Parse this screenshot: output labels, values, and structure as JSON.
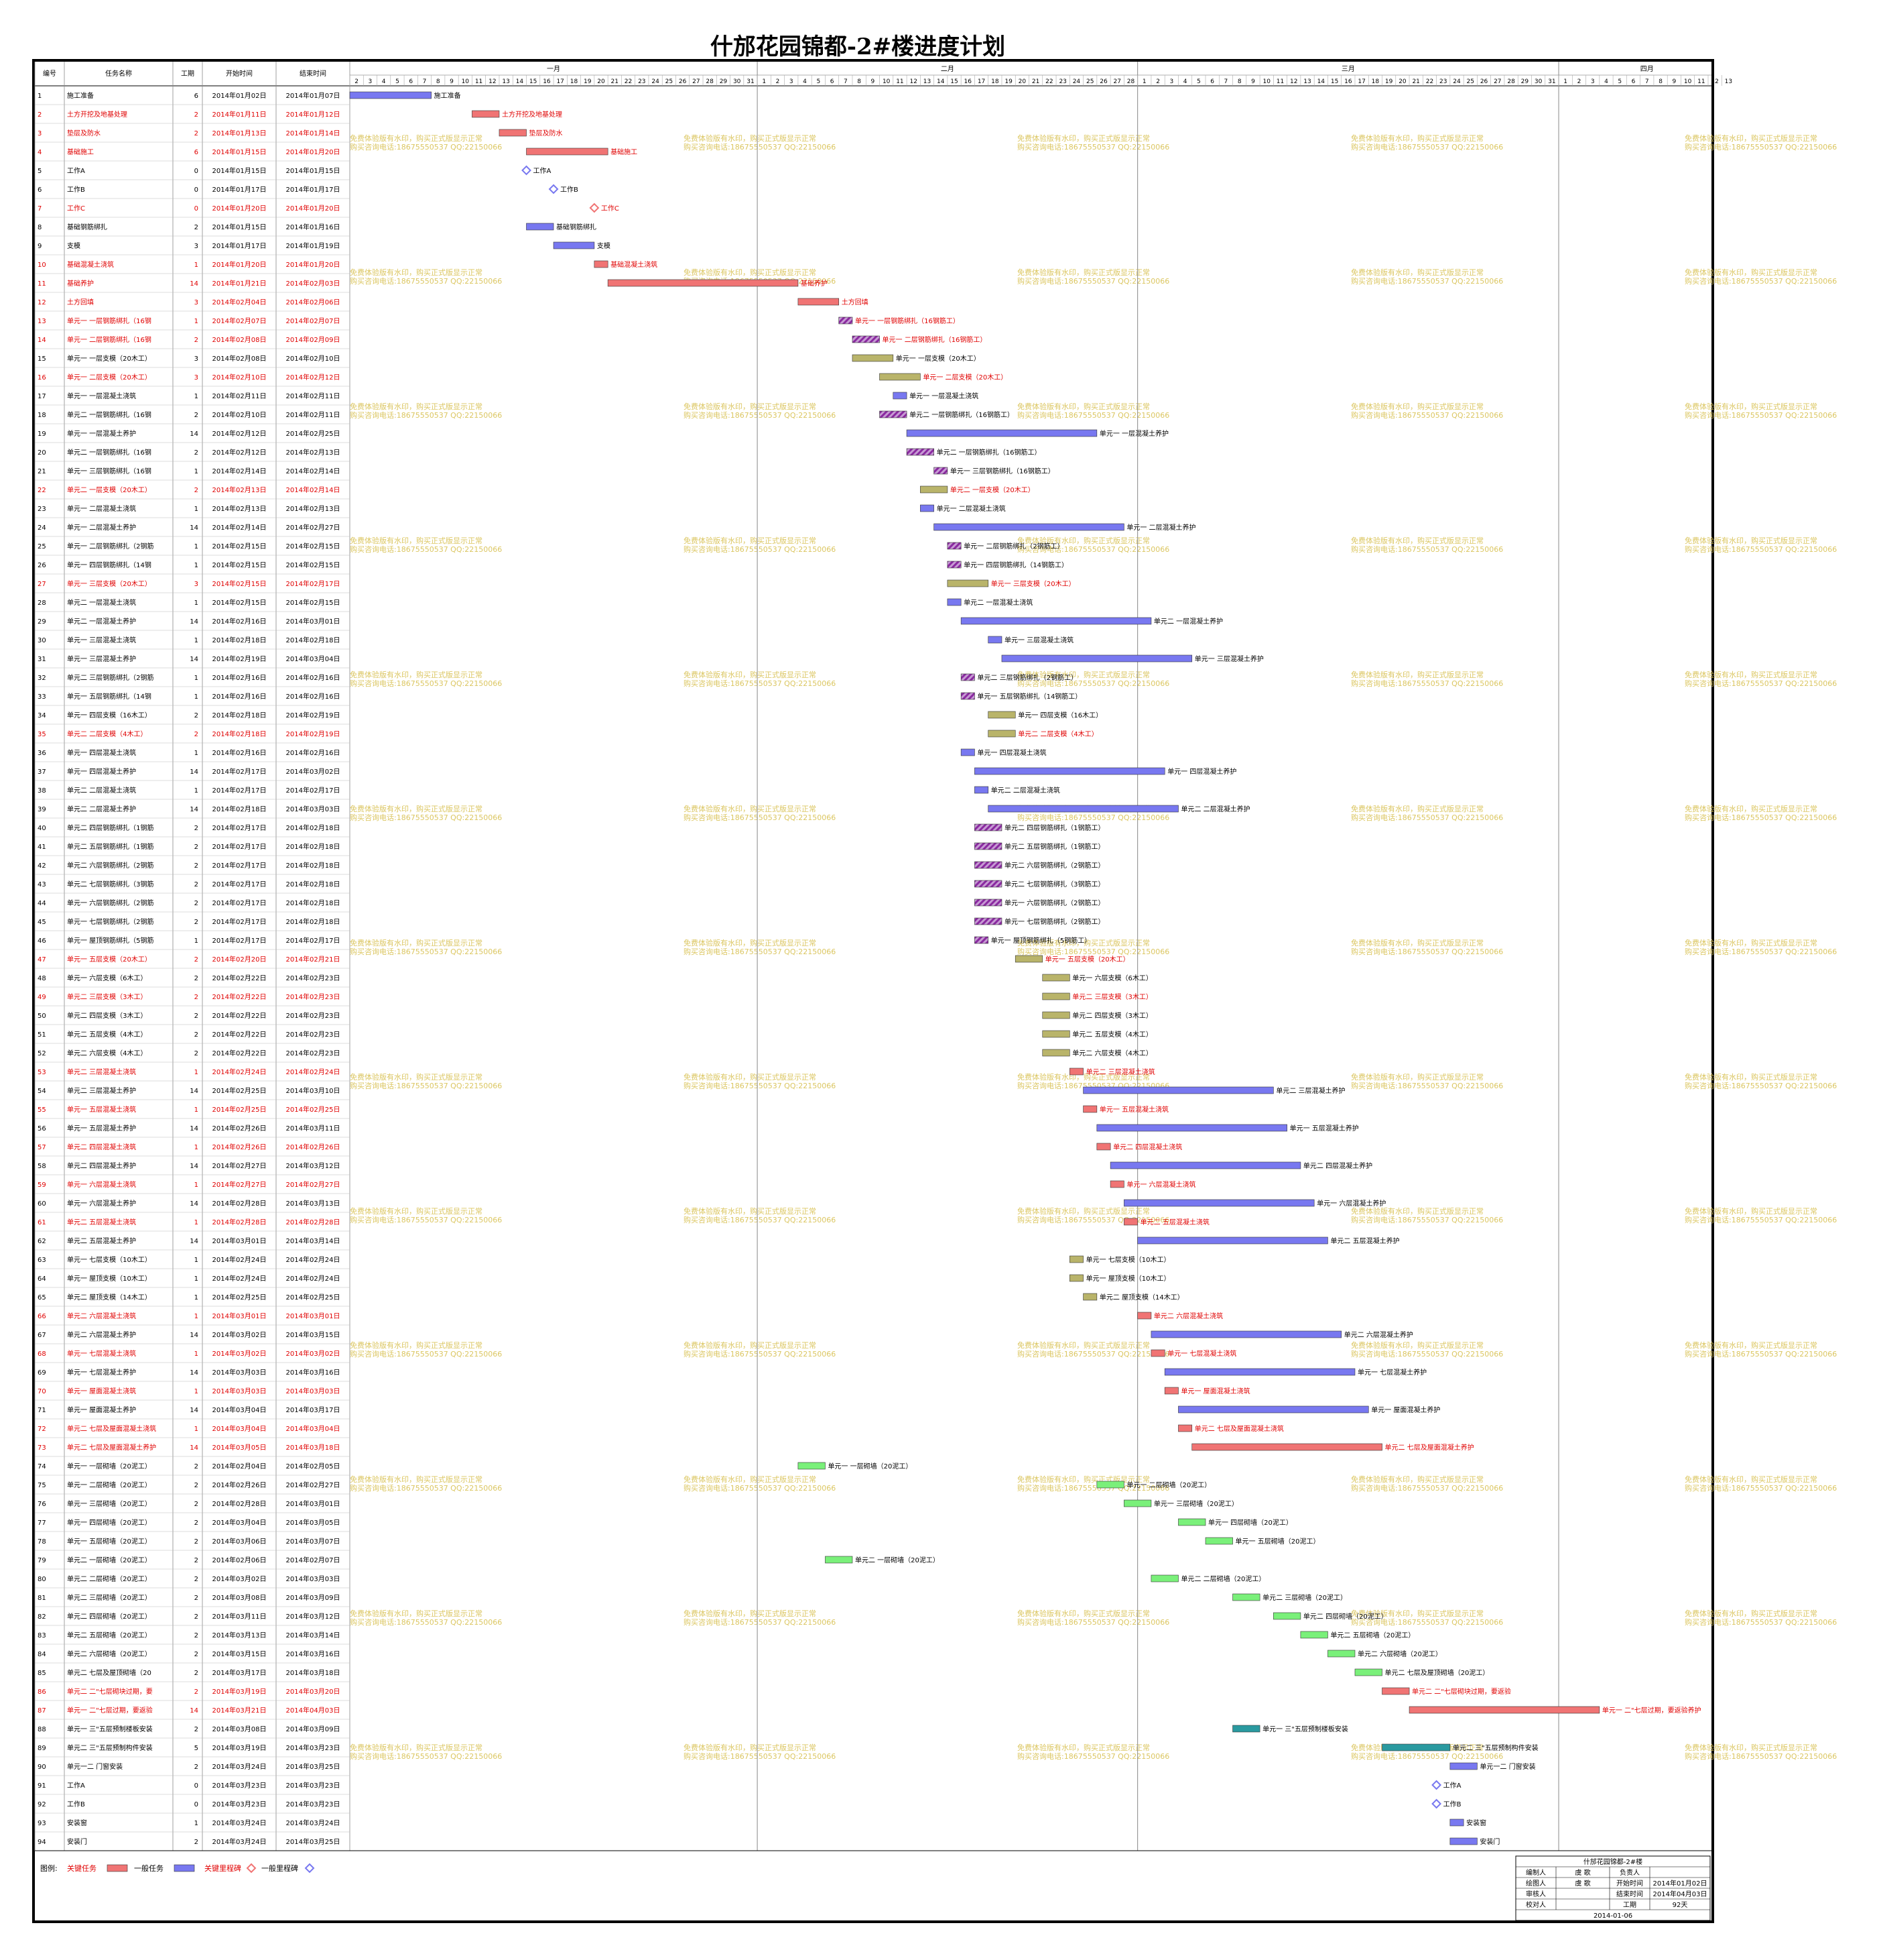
{
  "title": "什邡花园锦都-2#楼进度计划",
  "columns": [
    "编号",
    "任务名称",
    "工期",
    "开始时间",
    "结束时间"
  ],
  "months": [
    {
      "label": "一月",
      "days": [
        2,
        31
      ]
    },
    {
      "label": "二月",
      "days": [
        1,
        28
      ]
    },
    {
      "label": "三月",
      "days": [
        1,
        31
      ]
    },
    {
      "label": "四月",
      "days": [
        1,
        13
      ]
    }
  ],
  "watermark": [
    "免费体验版有水印，购买正式版显示正常",
    "购买咨询电话:18675550537 QQ:22150066"
  ],
  "legend": {
    "label": "图例:",
    "items": [
      "关键任务",
      "一般任务",
      "关键里程碑",
      "一般里程碑"
    ]
  },
  "colors": {
    "critical": "#f07474",
    "normal": "#7878f0",
    "rebar": "#8a2aa0",
    "formwork": "#b9b46a",
    "masonry": "#7af07a",
    "precast": "#2a9aa0",
    "text_red": "#e00000"
  },
  "info": {
    "project": "什邡花园锦都-2#楼",
    "rows": [
      [
        "编制人",
        "虞 歌",
        "负责人",
        ""
      ],
      [
        "绘图人",
        "虞 歌",
        "开始时间",
        "2014年01月02日"
      ],
      [
        "审核人",
        "",
        "结束时间",
        "2014年04月03日"
      ],
      [
        "校对人",
        "",
        "工期",
        "92天"
      ]
    ],
    "date": "2014-01-06"
  },
  "chart_data": {
    "type": "gantt",
    "title": "什邡花园锦都-2#楼进度计划",
    "x_range": [
      "2014-01-02",
      "2014-04-13"
    ],
    "tasks": [
      {
        "id": 1,
        "name": "施工准备",
        "dur": 6,
        "start": "2014年01月02日",
        "end": "2014年01月07日",
        "crit": false,
        "kind": "normal"
      },
      {
        "id": 2,
        "name": "土方开挖及地基处理",
        "dur": 2,
        "start": "2014年01月11日",
        "end": "2014年01月12日",
        "crit": true,
        "kind": "normal"
      },
      {
        "id": 3,
        "name": "垫层及防水",
        "dur": 2,
        "start": "2014年01月13日",
        "end": "2014年01月14日",
        "crit": true,
        "kind": "normal"
      },
      {
        "id": 4,
        "name": "基础施工",
        "dur": 6,
        "start": "2014年01月15日",
        "end": "2014年01月20日",
        "crit": true,
        "kind": "normal"
      },
      {
        "id": 5,
        "name": "工作A",
        "dur": 0,
        "start": "2014年01月15日",
        "end": "2014年01月15日",
        "crit": false,
        "kind": "milestone"
      },
      {
        "id": 6,
        "name": "工作B",
        "dur": 0,
        "start": "2014年01月17日",
        "end": "2014年01月17日",
        "crit": false,
        "kind": "milestone"
      },
      {
        "id": 7,
        "name": "工作C",
        "dur": 0,
        "start": "2014年01月20日",
        "end": "2014年01月20日",
        "crit": true,
        "kind": "milestone"
      },
      {
        "id": 8,
        "name": "基础钢筋绑扎",
        "dur": 2,
        "start": "2014年01月15日",
        "end": "2014年01月16日",
        "crit": false,
        "kind": "normal"
      },
      {
        "id": 9,
        "name": "支模",
        "dur": 3,
        "start": "2014年01月17日",
        "end": "2014年01月19日",
        "crit": false,
        "kind": "normal"
      },
      {
        "id": 10,
        "name": "基础混凝土浇筑",
        "dur": 1,
        "start": "2014年01月20日",
        "end": "2014年01月20日",
        "crit": true,
        "kind": "normal"
      },
      {
        "id": 11,
        "name": "基础养护",
        "dur": 14,
        "start": "2014年01月21日",
        "end": "2014年02月03日",
        "crit": true,
        "kind": "normal"
      },
      {
        "id": 12,
        "name": "土方回填",
        "dur": 3,
        "start": "2014年02月04日",
        "end": "2014年02月06日",
        "crit": true,
        "kind": "normal"
      },
      {
        "id": 13,
        "name": "单元一 一层钢筋绑扎（16钢筋工）",
        "dur": 1,
        "start": "2014年02月07日",
        "end": "2014年02月07日",
        "crit": true,
        "kind": "rebar"
      },
      {
        "id": 14,
        "name": "单元一 二层钢筋绑扎（16钢筋工）",
        "dur": 2,
        "start": "2014年02月08日",
        "end": "2014年02月09日",
        "crit": true,
        "kind": "rebar"
      },
      {
        "id": 15,
        "name": "单元一 一层支模（20木工）",
        "dur": 3,
        "start": "2014年02月08日",
        "end": "2014年02月10日",
        "crit": false,
        "kind": "formwork"
      },
      {
        "id": 16,
        "name": "单元一 二层支模（20木工）",
        "dur": 3,
        "start": "2014年02月10日",
        "end": "2014年02月12日",
        "crit": true,
        "kind": "formwork"
      },
      {
        "id": 17,
        "name": "单元一 一层混凝土浇筑",
        "dur": 1,
        "start": "2014年02月11日",
        "end": "2014年02月11日",
        "crit": false,
        "kind": "normal"
      },
      {
        "id": 18,
        "name": "单元二 一层钢筋绑扎（16钢筋工）",
        "dur": 2,
        "start": "2014年02月10日",
        "end": "2014年02月11日",
        "crit": false,
        "kind": "rebar"
      },
      {
        "id": 19,
        "name": "单元一 一层混凝土养护",
        "dur": 14,
        "start": "2014年02月12日",
        "end": "2014年02月25日",
        "crit": false,
        "kind": "normal"
      },
      {
        "id": 20,
        "name": "单元二 一层钢筋绑扎（16钢筋工）",
        "dur": 2,
        "start": "2014年02月12日",
        "end": "2014年02月13日",
        "crit": false,
        "kind": "rebar"
      },
      {
        "id": 21,
        "name": "单元一 三层钢筋绑扎（16钢筋工）",
        "dur": 1,
        "start": "2014年02月14日",
        "end": "2014年02月14日",
        "crit": false,
        "kind": "rebar"
      },
      {
        "id": 22,
        "name": "单元二 一层支模（20木工）",
        "dur": 2,
        "start": "2014年02月13日",
        "end": "2014年02月14日",
        "crit": true,
        "kind": "formwork"
      },
      {
        "id": 23,
        "name": "单元一 二层混凝土浇筑",
        "dur": 1,
        "start": "2014年02月13日",
        "end": "2014年02月13日",
        "crit": false,
        "kind": "normal"
      },
      {
        "id": 24,
        "name": "单元一 二层混凝土养护",
        "dur": 14,
        "start": "2014年02月14日",
        "end": "2014年02月27日",
        "crit": false,
        "kind": "normal"
      },
      {
        "id": 25,
        "name": "单元一 二层钢筋绑扎（2钢筋工）",
        "dur": 1,
        "start": "2014年02月15日",
        "end": "2014年02月15日",
        "crit": false,
        "kind": "rebar"
      },
      {
        "id": 26,
        "name": "单元一 四层钢筋绑扎（14钢筋工）",
        "dur": 1,
        "start": "2014年02月15日",
        "end": "2014年02月15日",
        "crit": false,
        "kind": "rebar"
      },
      {
        "id": 27,
        "name": "单元一 三层支模（20木工）",
        "dur": 3,
        "start": "2014年02月15日",
        "end": "2014年02月17日",
        "crit": true,
        "kind": "formwork"
      },
      {
        "id": 28,
        "name": "单元二 一层混凝土浇筑",
        "dur": 1,
        "start": "2014年02月15日",
        "end": "2014年02月15日",
        "crit": false,
        "kind": "normal"
      },
      {
        "id": 29,
        "name": "单元二 一层混凝土养护",
        "dur": 14,
        "start": "2014年02月16日",
        "end": "2014年03月01日",
        "crit": false,
        "kind": "normal"
      },
      {
        "id": 30,
        "name": "单元一 三层混凝土浇筑",
        "dur": 1,
        "start": "2014年02月18日",
        "end": "2014年02月18日",
        "crit": false,
        "kind": "normal"
      },
      {
        "id": 31,
        "name": "单元一 三层混凝土养护",
        "dur": 14,
        "start": "2014年02月19日",
        "end": "2014年03月04日",
        "crit": false,
        "kind": "normal"
      },
      {
        "id": 32,
        "name": "单元二 三层钢筋绑扎（2钢筋工）",
        "dur": 1,
        "start": "2014年02月16日",
        "end": "2014年02月16日",
        "crit": false,
        "kind": "rebar"
      },
      {
        "id": 33,
        "name": "单元一 五层钢筋绑扎（14钢筋工）",
        "dur": 1,
        "start": "2014年02月16日",
        "end": "2014年02月16日",
        "crit": false,
        "kind": "rebar"
      },
      {
        "id": 34,
        "name": "单元一 四层支模（16木工）",
        "dur": 2,
        "start": "2014年02月18日",
        "end": "2014年02月19日",
        "crit": false,
        "kind": "formwork"
      },
      {
        "id": 35,
        "name": "单元二 二层支模（4木工）",
        "dur": 2,
        "start": "2014年02月18日",
        "end": "2014年02月19日",
        "crit": true,
        "kind": "formwork"
      },
      {
        "id": 36,
        "name": "单元一 四层混凝土浇筑",
        "dur": 1,
        "start": "2014年02月16日",
        "end": "2014年02月16日",
        "crit": false,
        "kind": "normal"
      },
      {
        "id": 37,
        "name": "单元一 四层混凝土养护",
        "dur": 14,
        "start": "2014年02月17日",
        "end": "2014年03月02日",
        "crit": false,
        "kind": "normal"
      },
      {
        "id": 38,
        "name": "单元二 二层混凝土浇筑",
        "dur": 1,
        "start": "2014年02月17日",
        "end": "2014年02月17日",
        "crit": false,
        "kind": "normal"
      },
      {
        "id": 39,
        "name": "单元二 二层混凝土养护",
        "dur": 14,
        "start": "2014年02月18日",
        "end": "2014年03月03日",
        "crit": false,
        "kind": "normal"
      },
      {
        "id": 40,
        "name": "单元二 四层钢筋绑扎（1钢筋工）",
        "dur": 2,
        "start": "2014年02月17日",
        "end": "2014年02月18日",
        "crit": false,
        "kind": "rebar"
      },
      {
        "id": 41,
        "name": "单元二 五层钢筋绑扎（1钢筋工）",
        "dur": 2,
        "start": "2014年02月17日",
        "end": "2014年02月18日",
        "crit": false,
        "kind": "rebar"
      },
      {
        "id": 42,
        "name": "单元二 六层钢筋绑扎（2钢筋工）",
        "dur": 2,
        "start": "2014年02月17日",
        "end": "2014年02月18日",
        "crit": false,
        "kind": "rebar"
      },
      {
        "id": 43,
        "name": "单元二 七层钢筋绑扎（3钢筋工）",
        "dur": 2,
        "start": "2014年02月17日",
        "end": "2014年02月18日",
        "crit": false,
        "kind": "rebar"
      },
      {
        "id": 44,
        "name": "单元一 六层钢筋绑扎（2钢筋工）",
        "dur": 2,
        "start": "2014年02月17日",
        "end": "2014年02月18日",
        "crit": false,
        "kind": "rebar"
      },
      {
        "id": 45,
        "name": "单元一 七层钢筋绑扎（2钢筋工）",
        "dur": 2,
        "start": "2014年02月17日",
        "end": "2014年02月18日",
        "crit": false,
        "kind": "rebar"
      },
      {
        "id": 46,
        "name": "单元一 屋顶钢筋绑扎（5钢筋工）",
        "dur": 1,
        "start": "2014年02月17日",
        "end": "2014年02月17日",
        "crit": false,
        "kind": "rebar"
      },
      {
        "id": 47,
        "name": "单元一 五层支模（20木工）",
        "dur": 2,
        "start": "2014年02月20日",
        "end": "2014年02月21日",
        "crit": true,
        "kind": "formwork"
      },
      {
        "id": 48,
        "name": "单元一 六层支模（6木工）",
        "dur": 2,
        "start": "2014年02月22日",
        "end": "2014年02月23日",
        "crit": false,
        "kind": "formwork"
      },
      {
        "id": 49,
        "name": "单元二 三层支模（3木工）",
        "dur": 2,
        "start": "2014年02月22日",
        "end": "2014年02月23日",
        "crit": true,
        "kind": "formwork"
      },
      {
        "id": 50,
        "name": "单元二 四层支模（3木工）",
        "dur": 2,
        "start": "2014年02月22日",
        "end": "2014年02月23日",
        "crit": false,
        "kind": "formwork"
      },
      {
        "id": 51,
        "name": "单元二 五层支模（4木工）",
        "dur": 2,
        "start": "2014年02月22日",
        "end": "2014年02月23日",
        "crit": false,
        "kind": "formwork"
      },
      {
        "id": 52,
        "name": "单元二 六层支模（4木工）",
        "dur": 2,
        "start": "2014年02月22日",
        "end": "2014年02月23日",
        "crit": false,
        "kind": "formwork"
      },
      {
        "id": 53,
        "name": "单元二 三层混凝土浇筑",
        "dur": 1,
        "start": "2014年02月24日",
        "end": "2014年02月24日",
        "crit": true,
        "kind": "normal"
      },
      {
        "id": 54,
        "name": "单元二 三层混凝土养护",
        "dur": 14,
        "start": "2014年02月25日",
        "end": "2014年03月10日",
        "crit": false,
        "kind": "normal"
      },
      {
        "id": 55,
        "name": "单元一 五层混凝土浇筑",
        "dur": 1,
        "start": "2014年02月25日",
        "end": "2014年02月25日",
        "crit": true,
        "kind": "normal"
      },
      {
        "id": 56,
        "name": "单元一 五层混凝土养护",
        "dur": 14,
        "start": "2014年02月26日",
        "end": "2014年03月11日",
        "crit": false,
        "kind": "normal"
      },
      {
        "id": 57,
        "name": "单元二 四层混凝土浇筑",
        "dur": 1,
        "start": "2014年02月26日",
        "end": "2014年02月26日",
        "crit": true,
        "kind": "normal"
      },
      {
        "id": 58,
        "name": "单元二 四层混凝土养护",
        "dur": 14,
        "start": "2014年02月27日",
        "end": "2014年03月12日",
        "crit": false,
        "kind": "normal"
      },
      {
        "id": 59,
        "name": "单元一 六层混凝土浇筑",
        "dur": 1,
        "start": "2014年02月27日",
        "end": "2014年02月27日",
        "crit": true,
        "kind": "normal"
      },
      {
        "id": 60,
        "name": "单元一 六层混凝土养护",
        "dur": 14,
        "start": "2014年02月28日",
        "end": "2014年03月13日",
        "crit": false,
        "kind": "normal"
      },
      {
        "id": 61,
        "name": "单元二 五层混凝土浇筑",
        "dur": 1,
        "start": "2014年02月28日",
        "end": "2014年02月28日",
        "crit": true,
        "kind": "normal"
      },
      {
        "id": 62,
        "name": "单元二 五层混凝土养护",
        "dur": 14,
        "start": "2014年03月01日",
        "end": "2014年03月14日",
        "crit": false,
        "kind": "normal"
      },
      {
        "id": 63,
        "name": "单元一 七层支模（10木工）",
        "dur": 1,
        "start": "2014年02月24日",
        "end": "2014年02月24日",
        "crit": false,
        "kind": "formwork"
      },
      {
        "id": 64,
        "name": "单元一 屋顶支模（10木工）",
        "dur": 1,
        "start": "2014年02月24日",
        "end": "2014年02月24日",
        "crit": false,
        "kind": "formwork"
      },
      {
        "id": 65,
        "name": "单元二 屋顶支模（14木工）",
        "dur": 1,
        "start": "2014年02月25日",
        "end": "2014年02月25日",
        "crit": false,
        "kind": "formwork"
      },
      {
        "id": 66,
        "name": "单元二 六层混凝土浇筑",
        "dur": 1,
        "start": "2014年03月01日",
        "end": "2014年03月01日",
        "crit": true,
        "kind": "normal"
      },
      {
        "id": 67,
        "name": "单元二 六层混凝土养护",
        "dur": 14,
        "start": "2014年03月02日",
        "end": "2014年03月15日",
        "crit": false,
        "kind": "normal"
      },
      {
        "id": 68,
        "name": "单元一 七层混凝土浇筑",
        "dur": 1,
        "start": "2014年03月02日",
        "end": "2014年03月02日",
        "crit": true,
        "kind": "normal"
      },
      {
        "id": 69,
        "name": "单元一 七层混凝土养护",
        "dur": 14,
        "start": "2014年03月03日",
        "end": "2014年03月16日",
        "crit": false,
        "kind": "normal"
      },
      {
        "id": 70,
        "name": "单元一 屋面混凝土浇筑",
        "dur": 1,
        "start": "2014年03月03日",
        "end": "2014年03月03日",
        "crit": true,
        "kind": "normal"
      },
      {
        "id": 71,
        "name": "单元一 屋面混凝土养护",
        "dur": 14,
        "start": "2014年03月04日",
        "end": "2014年03月17日",
        "crit": false,
        "kind": "normal"
      },
      {
        "id": 72,
        "name": "单元二 七层及屋面混凝土浇筑",
        "dur": 1,
        "start": "2014年03月04日",
        "end": "2014年03月04日",
        "crit": true,
        "kind": "normal"
      },
      {
        "id": 73,
        "name": "单元二 七层及屋面混凝土养护",
        "dur": 14,
        "start": "2014年03月05日",
        "end": "2014年03月18日",
        "crit": true,
        "kind": "normal"
      },
      {
        "id": 74,
        "name": "单元一 一层砌墙（20泥工）",
        "dur": 2,
        "start": "2014年02月04日",
        "end": "2014年02月05日",
        "crit": false,
        "kind": "masonry"
      },
      {
        "id": 75,
        "name": "单元一 二层砌墙（20泥工）",
        "dur": 2,
        "start": "2014年02月26日",
        "end": "2014年02月27日",
        "crit": false,
        "kind": "masonry"
      },
      {
        "id": 76,
        "name": "单元一 三层砌墙（20泥工）",
        "dur": 2,
        "start": "2014年02月28日",
        "end": "2014年03月01日",
        "crit": false,
        "kind": "masonry"
      },
      {
        "id": 77,
        "name": "单元一 四层砌墙（20泥工）",
        "dur": 2,
        "start": "2014年03月04日",
        "end": "2014年03月05日",
        "crit": false,
        "kind": "masonry"
      },
      {
        "id": 78,
        "name": "单元一 五层砌墙（20泥工）",
        "dur": 2,
        "start": "2014年03月06日",
        "end": "2014年03月07日",
        "crit": false,
        "kind": "masonry"
      },
      {
        "id": 79,
        "name": "单元二 一层砌墙（20泥工）",
        "dur": 2,
        "start": "2014年02月06日",
        "end": "2014年02月07日",
        "crit": false,
        "kind": "masonry"
      },
      {
        "id": 80,
        "name": "单元二 二层砌墙（20泥工）",
        "dur": 2,
        "start": "2014年03月02日",
        "end": "2014年03月03日",
        "crit": false,
        "kind": "masonry"
      },
      {
        "id": 81,
        "name": "单元二 三层砌墙（20泥工）",
        "dur": 2,
        "start": "2014年03月08日",
        "end": "2014年03月09日",
        "crit": false,
        "kind": "masonry"
      },
      {
        "id": 82,
        "name": "单元二 四层砌墙（20泥工）",
        "dur": 2,
        "start": "2014年03月11日",
        "end": "2014年03月12日",
        "crit": false,
        "kind": "masonry"
      },
      {
        "id": 83,
        "name": "单元二 五层砌墙（20泥工）",
        "dur": 2,
        "start": "2014年03月13日",
        "end": "2014年03月14日",
        "crit": false,
        "kind": "masonry"
      },
      {
        "id": 84,
        "name": "单元二 六层砌墙（20泥工）",
        "dur": 2,
        "start": "2014年03月15日",
        "end": "2014年03月16日",
        "crit": false,
        "kind": "masonry"
      },
      {
        "id": 85,
        "name": "单元二 七层及屋顶砌墙（20泥工）",
        "dur": 2,
        "start": "2014年03月17日",
        "end": "2014年03月18日",
        "crit": false,
        "kind": "masonry"
      },
      {
        "id": 86,
        "name": "单元二 二\"七层砌块过期，要返验",
        "dur": 2,
        "start": "2014年03月19日",
        "end": "2014年03月20日",
        "crit": true,
        "kind": "normal"
      },
      {
        "id": 87,
        "name": "单元一 二\"七层过期，要返验养护",
        "dur": 14,
        "start": "2014年03月21日",
        "end": "2014年04月03日",
        "crit": true,
        "kind": "normal"
      },
      {
        "id": 88,
        "name": "单元一 三\"五层预制楼板安装",
        "dur": 2,
        "start": "2014年03月08日",
        "end": "2014年03月09日",
        "crit": false,
        "kind": "precast"
      },
      {
        "id": 89,
        "name": "单元二 三\"五层预制构件安装",
        "dur": 5,
        "start": "2014年03月19日",
        "end": "2014年03月23日",
        "crit": false,
        "kind": "precast"
      },
      {
        "id": 90,
        "name": "单元一二 门窗安装",
        "dur": 2,
        "start": "2014年03月24日",
        "end": "2014年03月25日",
        "crit": false,
        "kind": "normal"
      },
      {
        "id": 91,
        "name": "工作A",
        "dur": 0,
        "start": "2014年03月23日",
        "end": "2014年03月23日",
        "crit": false,
        "kind": "milestone"
      },
      {
        "id": 92,
        "name": "工作B",
        "dur": 0,
        "start": "2014年03月23日",
        "end": "2014年03月23日",
        "crit": false,
        "kind": "milestone"
      },
      {
        "id": 93,
        "name": "安装窗",
        "dur": 1,
        "start": "2014年03月24日",
        "end": "2014年03月24日",
        "crit": false,
        "kind": "normal"
      },
      {
        "id": 94,
        "name": "安装门",
        "dur": 2,
        "start": "2014年03月24日",
        "end": "2014年03月25日",
        "crit": false,
        "kind": "normal"
      }
    ]
  }
}
